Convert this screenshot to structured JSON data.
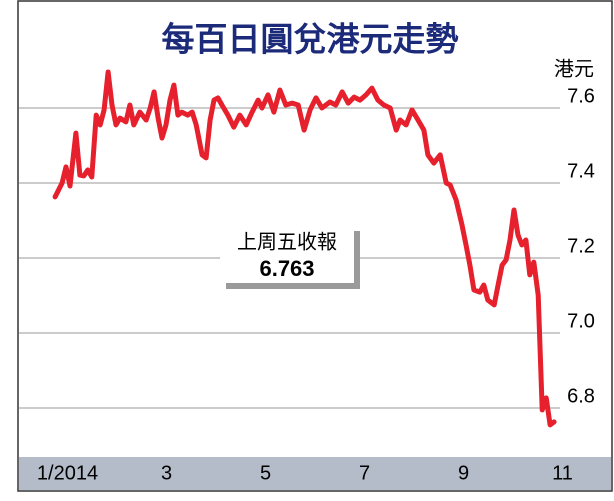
{
  "chart_data": {
    "type": "line",
    "title": "每百日圓兌港元走勢",
    "y_unit": "港元",
    "annotation": {
      "label": "上周五收報",
      "value": "6.763"
    },
    "color": "#e6202c",
    "x": [
      0.75,
      0.89,
      0.97,
      1.05,
      1.17,
      1.25,
      1.33,
      1.41,
      1.49,
      1.58,
      1.66,
      1.74,
      1.82,
      1.9,
      1.98,
      2.06,
      2.18,
      2.26,
      2.34,
      2.46,
      2.59,
      2.67,
      2.75,
      2.83,
      2.91,
      2.99,
      3.07,
      3.15,
      3.23,
      3.31,
      3.43,
      3.52,
      3.6,
      3.72,
      3.8,
      3.88,
      3.96,
      4.04,
      4.12,
      4.24,
      4.36,
      4.48,
      4.61,
      4.73,
      4.85,
      4.93,
      5.05,
      5.17,
      5.29,
      5.41,
      5.54,
      5.66,
      5.78,
      5.9,
      6.02,
      6.14,
      6.3,
      6.42,
      6.55,
      6.67,
      6.79,
      6.91,
      7.03,
      7.15,
      7.27,
      7.39,
      7.52,
      7.64,
      7.72,
      7.84,
      7.96,
      8.08,
      8.2,
      8.28,
      8.4,
      8.53,
      8.65,
      8.73,
      8.85,
      8.97,
      9.05,
      9.13,
      9.21,
      9.33,
      9.41,
      9.49,
      9.62,
      9.7,
      9.78,
      9.86,
      9.94,
      10.02,
      10.1,
      10.18,
      10.26,
      10.34,
      10.42,
      10.51,
      10.59,
      10.67,
      10.75,
      10.83
    ],
    "values": [
      7.363,
      7.4,
      7.443,
      7.392,
      7.533,
      7.421,
      7.419,
      7.435,
      7.416,
      7.581,
      7.555,
      7.595,
      7.696,
      7.608,
      7.555,
      7.573,
      7.563,
      7.608,
      7.555,
      7.589,
      7.568,
      7.6,
      7.643,
      7.573,
      7.52,
      7.555,
      7.621,
      7.661,
      7.581,
      7.589,
      7.581,
      7.589,
      7.555,
      7.475,
      7.467,
      7.568,
      7.621,
      7.627,
      7.608,
      7.581,
      7.549,
      7.581,
      7.555,
      7.589,
      7.621,
      7.6,
      7.635,
      7.589,
      7.648,
      7.608,
      7.613,
      7.608,
      7.541,
      7.595,
      7.627,
      7.6,
      7.616,
      7.608,
      7.643,
      7.613,
      7.629,
      7.621,
      7.635,
      7.653,
      7.621,
      7.608,
      7.6,
      7.541,
      7.568,
      7.555,
      7.595,
      7.568,
      7.541,
      7.475,
      7.453,
      7.475,
      7.4,
      7.395,
      7.355,
      7.288,
      7.235,
      7.181,
      7.115,
      7.109,
      7.128,
      7.088,
      7.075,
      7.128,
      7.181,
      7.195,
      7.248,
      7.328,
      7.261,
      7.235,
      7.248,
      7.155,
      7.189,
      7.101,
      6.795,
      6.827,
      6.755,
      6.763
    ],
    "xlim": [
      0,
      12
    ],
    "xticks": [
      {
        "value": 1,
        "label": "1/2014"
      },
      3,
      5,
      7,
      9,
      11
    ],
    "ylim": [
      6.6,
      7.8
    ],
    "yticks": [
      {
        "value": 6.8,
        "label": "6.8"
      },
      {
        "value": 7.0,
        "label": "7.0"
      },
      {
        "value": 7.2,
        "label": "7.2"
      },
      {
        "value": 7.4,
        "label": "7.4"
      },
      {
        "value": 7.6,
        "label": "7.6"
      }
    ],
    "grid": true
  }
}
